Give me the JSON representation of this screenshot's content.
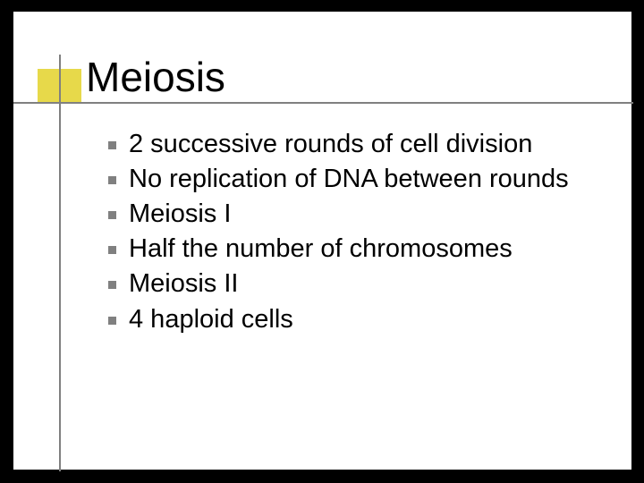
{
  "slide": {
    "title": "Meiosis",
    "bullets": [
      "2 successive rounds of cell division",
      "No replication of DNA between rounds",
      "Meiosis I",
      "Half the number of chromosomes",
      "Meiosis II",
      "4 haploid cells"
    ]
  },
  "style": {
    "background_color": "#000000",
    "slide_color": "#ffffff",
    "accent_color": "#e7d94a",
    "line_color": "#808080",
    "bullet_color": "#808080",
    "text_color": "#000000",
    "title_fontsize": 46,
    "body_fontsize": 29
  }
}
